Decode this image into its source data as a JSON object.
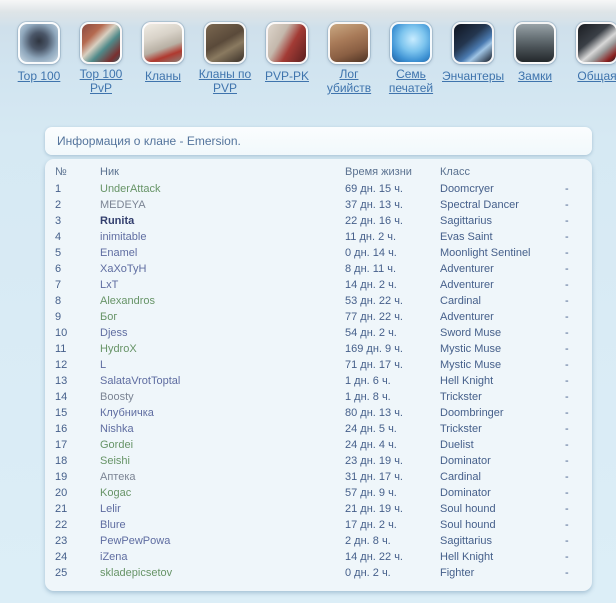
{
  "colors": {
    "nav_link": "#3f74ad",
    "nick_green": "#679467",
    "nick_slate": "#5f6da1",
    "nick_gray": "#7b8494",
    "nick_leader": "#333f6e",
    "table_text": "#46608b",
    "panel_bg": "#eff6fa"
  },
  "nav": {
    "items": [
      {
        "label": "Top 100",
        "icon": "top100-icon"
      },
      {
        "label": "Top 100 PvP",
        "icon": "top100-pvp-icon"
      },
      {
        "label": "Кланы",
        "icon": "clans-icon"
      },
      {
        "label": "Кланы по PVP",
        "icon": "clans-pvp-icon"
      },
      {
        "label": "PVP-PK",
        "icon": "pvp-pk-icon"
      },
      {
        "label": "Лог убийств",
        "icon": "kill-log-icon"
      },
      {
        "label": "Семь печатей",
        "icon": "seven-seals-icon"
      },
      {
        "label": "Энчантеры",
        "icon": "enchanters-icon"
      },
      {
        "label": "Замки",
        "icon": "castles-icon"
      },
      {
        "label": "Общая",
        "icon": "general-stats-icon"
      }
    ]
  },
  "clan_info": {
    "title": "Информация о клане - Emersion."
  },
  "table": {
    "headers": [
      "№",
      "Ник",
      "Время жизни",
      "Класс",
      ""
    ],
    "rows": [
      {
        "n": "1",
        "nick": "UnderAttack",
        "time": "69 дн. 15 ч.",
        "cls": "Doomcryer",
        "pvp": "-",
        "style": "green"
      },
      {
        "n": "2",
        "nick": "MEDEYA",
        "time": "37 дн. 13 ч.",
        "cls": "Spectral Dancer",
        "pvp": "-",
        "style": "gray"
      },
      {
        "n": "3",
        "nick": "Runita",
        "time": "22 дн. 16 ч.",
        "cls": "Sagittarius",
        "pvp": "-",
        "style": "leader"
      },
      {
        "n": "4",
        "nick": "inimitable",
        "time": "11 дн. 2 ч.",
        "cls": "Evas Saint",
        "pvp": "-",
        "style": "slate"
      },
      {
        "n": "5",
        "nick": "Enamel",
        "time": "0 дн. 14 ч.",
        "cls": "Moonlight Sentinel",
        "pvp": "-",
        "style": "slate"
      },
      {
        "n": "6",
        "nick": "XaXoTyH",
        "time": "8 дн. 11 ч.",
        "cls": "Adventurer",
        "pvp": "-",
        "style": "slate"
      },
      {
        "n": "7",
        "nick": "LxT",
        "time": "14 дн. 2 ч.",
        "cls": "Adventurer",
        "pvp": "-",
        "style": "slate"
      },
      {
        "n": "8",
        "nick": "Alexandros",
        "time": "53 дн. 22 ч.",
        "cls": "Cardinal",
        "pvp": "-",
        "style": "green"
      },
      {
        "n": "9",
        "nick": "Бог",
        "time": "77 дн. 22 ч.",
        "cls": "Adventurer",
        "pvp": "-",
        "style": "green"
      },
      {
        "n": "10",
        "nick": "Djess",
        "time": "54 дн. 2 ч.",
        "cls": "Sword Muse",
        "pvp": "-",
        "style": "slate"
      },
      {
        "n": "11",
        "nick": "HydroX",
        "time": "169 дн. 9 ч.",
        "cls": "Mystic Muse",
        "pvp": "-",
        "style": "green"
      },
      {
        "n": "12",
        "nick": "L",
        "time": "71 дн. 17 ч.",
        "cls": "Mystic Muse",
        "pvp": "-",
        "style": "slate"
      },
      {
        "n": "13",
        "nick": "SalataVrotToptal",
        "time": "1 дн. 6 ч.",
        "cls": "Hell Knight",
        "pvp": "-",
        "style": "slate"
      },
      {
        "n": "14",
        "nick": "Boosty",
        "time": "1 дн. 8 ч.",
        "cls": "Trickster",
        "pvp": "-",
        "style": "gray"
      },
      {
        "n": "15",
        "nick": "Клубничка",
        "time": "80 дн. 13 ч.",
        "cls": "Doombringer",
        "pvp": "-",
        "style": "slate"
      },
      {
        "n": "16",
        "nick": "Nishka",
        "time": "24 дн. 5 ч.",
        "cls": "Trickster",
        "pvp": "-",
        "style": "slate"
      },
      {
        "n": "17",
        "nick": "Gordei",
        "time": "24 дн. 4 ч.",
        "cls": "Duelist",
        "pvp": "-",
        "style": "green"
      },
      {
        "n": "18",
        "nick": "Seishi",
        "time": "23 дн. 19 ч.",
        "cls": "Dominator",
        "pvp": "-",
        "style": "green"
      },
      {
        "n": "19",
        "nick": "Аптека",
        "time": "31 дн. 17 ч.",
        "cls": "Cardinal",
        "pvp": "-",
        "style": "gray"
      },
      {
        "n": "20",
        "nick": "Kogac",
        "time": "57 дн. 9 ч.",
        "cls": "Dominator",
        "pvp": "-",
        "style": "green"
      },
      {
        "n": "21",
        "nick": "Lelir",
        "time": "21 дн. 19 ч.",
        "cls": "Soul hound",
        "pvp": "-",
        "style": "slate"
      },
      {
        "n": "22",
        "nick": "Blure",
        "time": "17 дн. 2 ч.",
        "cls": "Soul hound",
        "pvp": "-",
        "style": "slate"
      },
      {
        "n": "23",
        "nick": "PewPewPowa",
        "time": "2 дн. 8 ч.",
        "cls": "Sagittarius",
        "pvp": "-",
        "style": "slate"
      },
      {
        "n": "24",
        "nick": "iZena",
        "time": "14 дн. 22 ч.",
        "cls": "Hell Knight",
        "pvp": "-",
        "style": "slate"
      },
      {
        "n": "25",
        "nick": "skladepicsetov",
        "time": "0 дн. 2 ч.",
        "cls": "Fighter",
        "pvp": "-",
        "style": "green"
      }
    ]
  }
}
